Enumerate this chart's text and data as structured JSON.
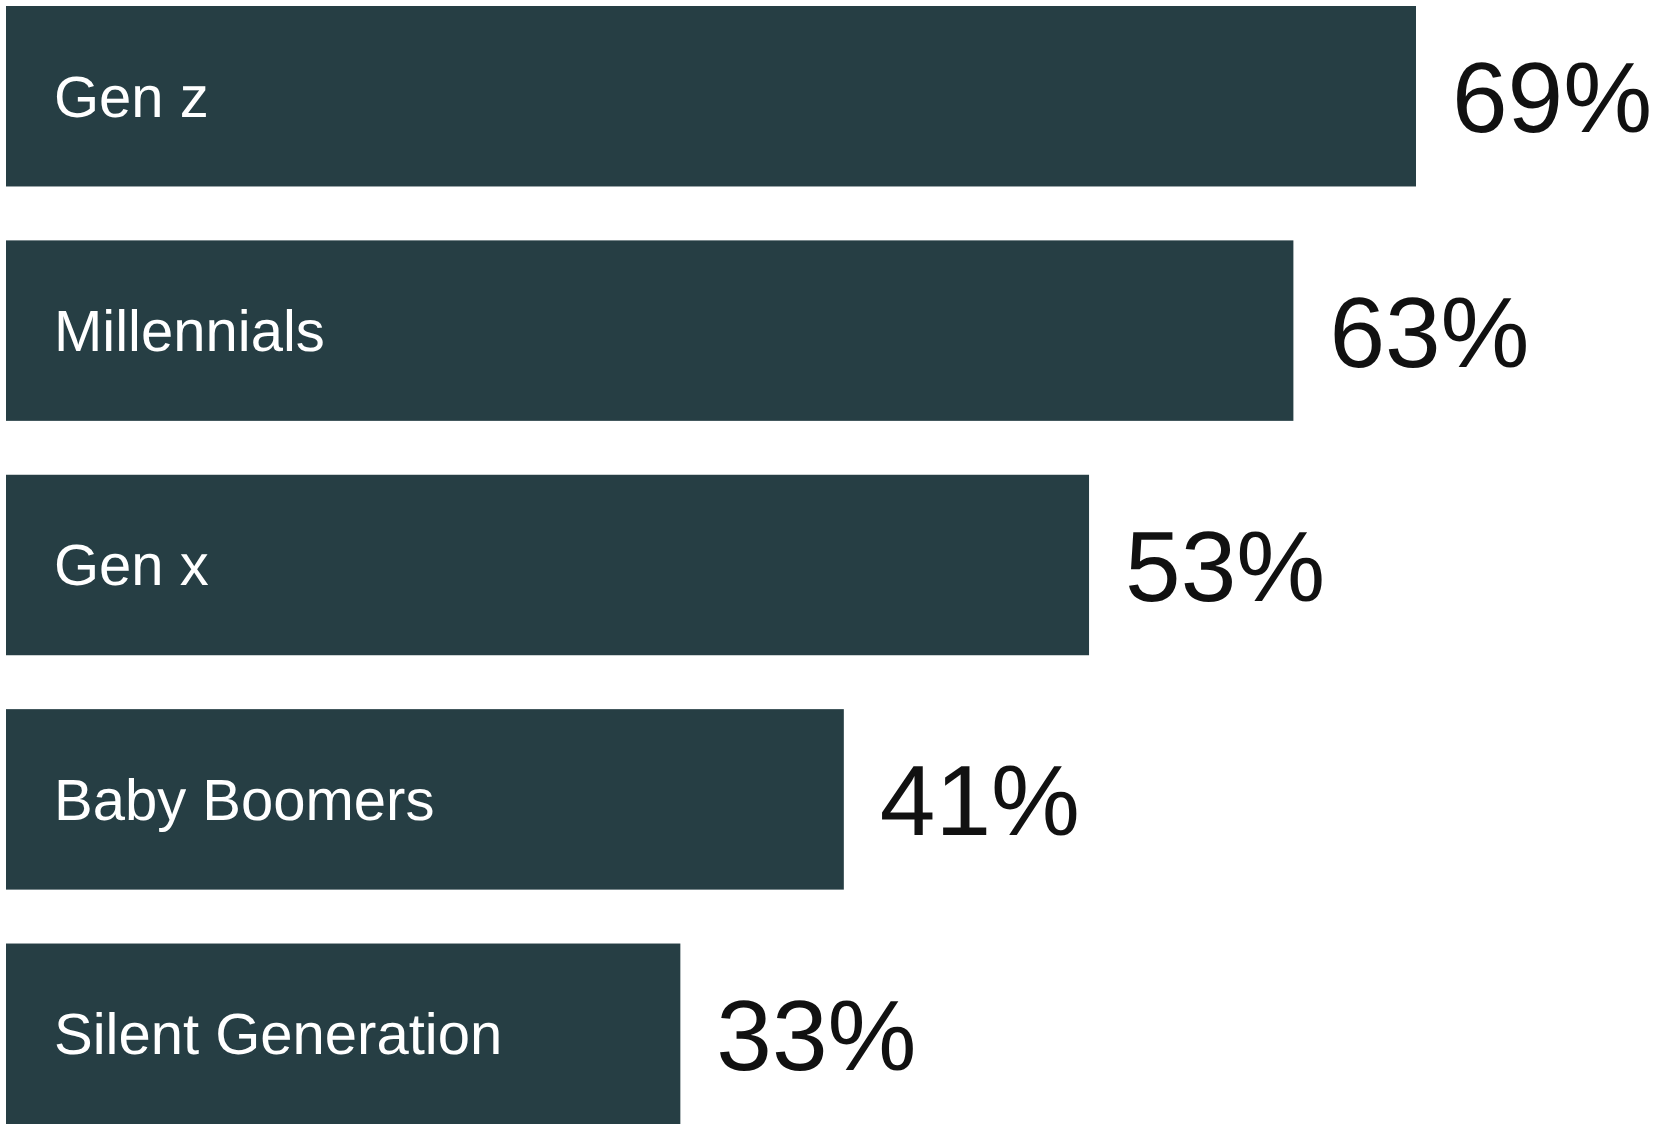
{
  "chart_data": {
    "type": "bar",
    "orientation": "horizontal",
    "categories": [
      "Gen z",
      "Millennials",
      "Gen x",
      "Baby Boomers",
      "Silent Generation"
    ],
    "values": [
      69,
      63,
      53,
      41,
      33
    ],
    "value_labels": [
      "69%",
      "63%",
      "53%",
      "41%",
      "33%"
    ],
    "color": "#263e44"
  }
}
